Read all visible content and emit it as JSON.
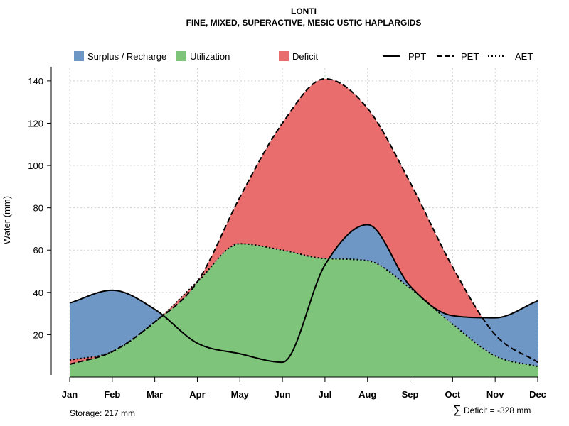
{
  "chart_data": {
    "type": "area",
    "title": "LONTI",
    "subtitle": "FINE, MIXED, SUPERACTIVE, MESIC USTIC HAPLARGIDS",
    "ylabel": "Water (mm)",
    "xlabel": "",
    "ylim": [
      0,
      146
    ],
    "yticks": [
      20,
      40,
      60,
      80,
      100,
      120,
      140
    ],
    "grid": true,
    "categories": [
      "Jan",
      "Feb",
      "Mar",
      "Apr",
      "May",
      "Jun",
      "Jul",
      "Aug",
      "Sep",
      "Oct",
      "Nov",
      "Dec"
    ],
    "series": [
      {
        "name": "PPT",
        "style": "solid",
        "values": [
          35,
          41,
          32,
          16,
          11,
          7,
          53,
          72,
          43,
          29,
          28,
          36
        ]
      },
      {
        "name": "PET",
        "style": "dashed",
        "values": [
          6,
          12,
          26,
          45,
          85,
          120,
          141,
          127,
          92,
          52,
          20,
          7
        ]
      },
      {
        "name": "AET",
        "style": "dotted",
        "values": [
          8,
          12,
          26,
          45,
          63,
          60,
          56,
          55,
          42,
          25,
          10,
          5
        ]
      }
    ],
    "areas": [
      {
        "name": "Surplus / Recharge",
        "color": "#6f97c6"
      },
      {
        "name": "Utilization",
        "color": "#7ec47b"
      },
      {
        "name": "Deficit",
        "color": "#e96d6d"
      }
    ],
    "legend": {
      "placement": "top",
      "areas": [
        "Surplus / Recharge",
        "Utilization",
        "Deficit"
      ],
      "lines": [
        "PPT",
        "PET",
        "AET"
      ]
    },
    "annotations": {
      "storage": "Storage: 217 mm",
      "deficit": "Deficit = -328 mm",
      "deficit_symbol": "∑"
    }
  }
}
